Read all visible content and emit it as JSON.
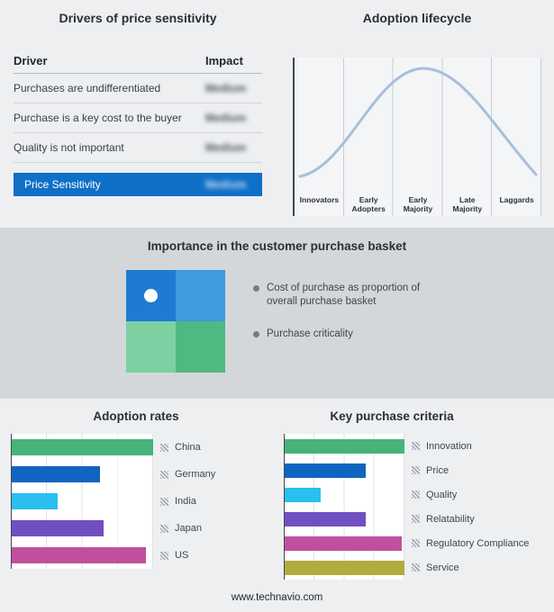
{
  "page": {
    "footer_url": "www.technavio.com"
  },
  "drivers_panel": {
    "title": "Drivers of price sensitivity",
    "header": {
      "driver": "Driver",
      "impact": "Impact"
    },
    "rows": [
      {
        "driver": "Purchases are undifferentiated",
        "impact": "Medium"
      },
      {
        "driver": "Purchase is a key cost to the buyer",
        "impact": "Medium"
      },
      {
        "driver": "Quality is not important",
        "impact": "Medium"
      }
    ],
    "summary_row": {
      "label": "Price Sensitivity",
      "impact": "Medium"
    },
    "accent_color": "#0f70c8"
  },
  "lifecycle_panel": {
    "title": "Adoption lifecycle",
    "stages": [
      "Innovators",
      "Early Adopters",
      "Early Majority",
      "Late Majority",
      "Laggards"
    ],
    "curve_color": "#a8bfd8"
  },
  "basket_panel": {
    "title": "Importance in the customer purchase basket",
    "legend": [
      "Cost of purchase as proportion of overall purchase basket",
      "Purchase criticality"
    ],
    "matrix_colors": {
      "top_left": "#1d7bd2",
      "top_right": "#3f9ade",
      "bottom_left": "#7dd0a1",
      "bottom_right": "#4fb982"
    }
  },
  "chart_data": [
    {
      "id": "adoption_lifecycle",
      "type": "line",
      "title": "Adoption lifecycle",
      "x_categories": [
        "Innovators",
        "Early Adopters",
        "Early Majority",
        "Late Majority",
        "Laggards"
      ],
      "shape": "bell curve rising from Innovators, peaking around Early Majority, falling to Laggards",
      "grid": "vertical stage divider lines",
      "curve_color": "#a8bfd8"
    },
    {
      "id": "adoption_rates",
      "type": "bar",
      "orientation": "horizontal",
      "title": "Adoption rates",
      "categories": [
        "China",
        "Germany",
        "India",
        "Japan",
        "US"
      ],
      "values": [
        4.0,
        2.5,
        1.3,
        2.6,
        3.8
      ],
      "colors": [
        "#47b37a",
        "#1065c1",
        "#29c0f0",
        "#7050c0",
        "#c14f9f"
      ],
      "xlim": [
        0,
        4
      ],
      "grid": true,
      "legend_position": "right"
    },
    {
      "id": "key_purchase_criteria",
      "type": "bar",
      "orientation": "horizontal",
      "title": "Key purchase criteria",
      "categories": [
        "Innovation",
        "Price",
        "Quality",
        "Relatability",
        "Regulatory Compliance",
        "Service"
      ],
      "values": [
        4.0,
        2.7,
        1.2,
        2.7,
        3.9,
        4.0
      ],
      "colors": [
        "#47b37a",
        "#1065c1",
        "#29c0f0",
        "#7050c0",
        "#c14f9f",
        "#b2ac3f"
      ],
      "xlim": [
        0,
        4
      ],
      "grid": true,
      "legend_position": "right"
    }
  ]
}
